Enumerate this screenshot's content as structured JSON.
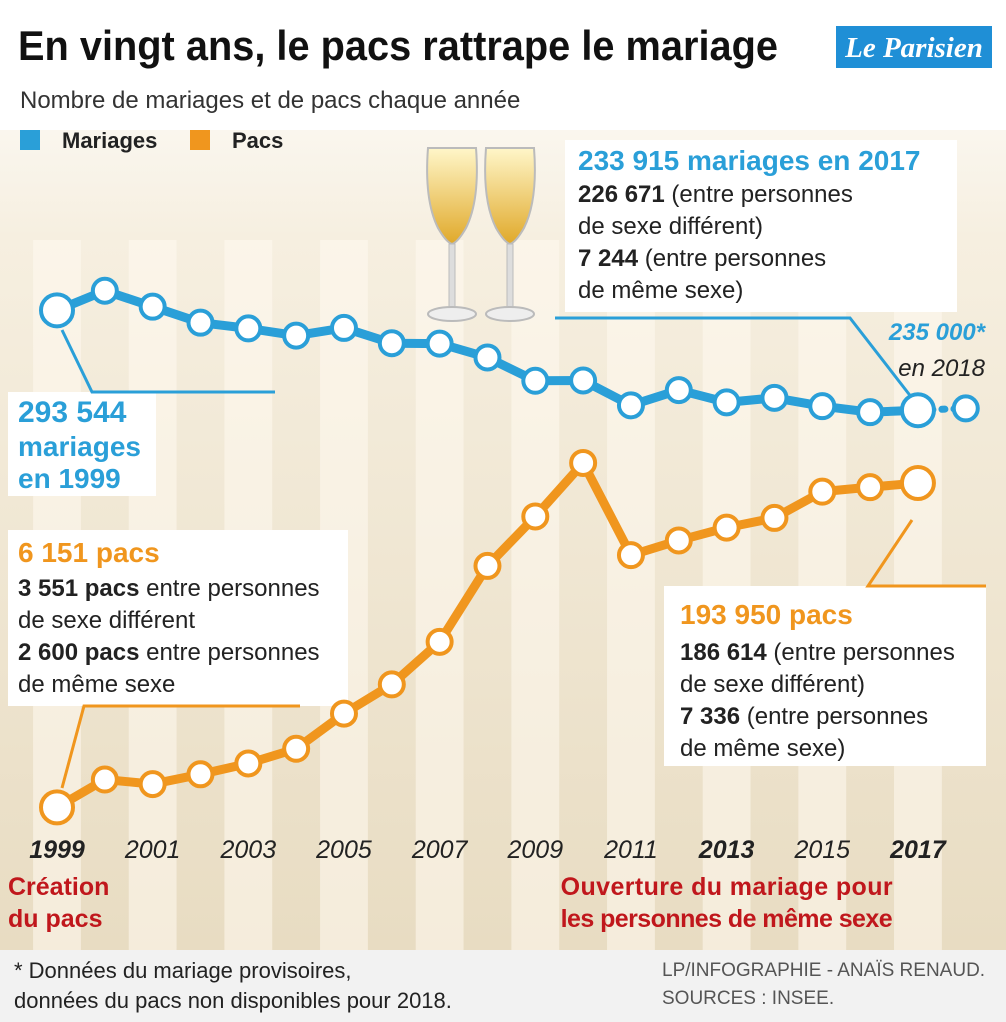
{
  "chart_data": {
    "type": "line",
    "title": "En vingt ans, le pacs rattrape le mariage",
    "subtitle": "Nombre de mariages et de pacs chaque année",
    "brand": "Le Parisien",
    "categories": [
      "1999",
      null,
      "2001",
      null,
      "2003",
      null,
      "2005",
      null,
      "2007",
      null,
      "2009",
      null,
      "2011",
      null,
      "2013",
      null,
      "2015",
      null,
      "2017",
      null
    ],
    "series": [
      {
        "name": "Mariages",
        "color": "#2a9fd8",
        "axis": "y2",
        "values": [
          293544,
          305234,
          295720,
          286169,
          282756,
          278439,
          283036,
          273914,
          273669,
          265404,
          251478,
          251654,
          236826,
          245930,
          238592,
          241292,
          236316,
          232725,
          233915,
          235000
        ],
        "value_labels": [
          "293 544",
          null,
          null,
          null,
          null,
          null,
          null,
          null,
          null,
          null,
          null,
          null,
          null,
          null,
          null,
          null,
          null,
          null,
          "233 915 mariages en 2017",
          "235 000*"
        ]
      },
      {
        "name": "Pacs",
        "color": "#f0961e",
        "axis": "y",
        "values": [
          6151,
          22271,
          19629,
          25305,
          31585,
          40080,
          60462,
          77347,
          101980,
          145938,
          174584,
          205558,
          152176,
          160690,
          168126,
          173728,
          188947,
          191537,
          193950,
          null
        ],
        "value_labels": [
          "6 151 pacs",
          null,
          null,
          null,
          null,
          null,
          null,
          null,
          null,
          null,
          null,
          null,
          null,
          null,
          null,
          null,
          null,
          null,
          "193 950 pacs",
          null
        ]
      }
    ],
    "ylim": [
      0,
      220000
    ],
    "y2lim": [
      200000,
      320000
    ],
    "dotted_after": "2017",
    "emphasized_category": "2017",
    "events": [
      {
        "at": "1999",
        "color": "#c0171c",
        "label": [
          "Création",
          "du pacs"
        ]
      },
      {
        "at": "2013",
        "color": "#c0171c",
        "label": [
          "Ouverture du mariage pour",
          "les personnes de même sexe"
        ]
      }
    ],
    "callouts": [
      {
        "color": "#2a9fd8",
        "emphasis": false,
        "lines": [
          [
            "226 671",
            " (entre personnes"
          ],
          [
            "de sexe différent)"
          ],
          [
            "7 244",
            " (entre personnes"
          ],
          [
            "de même sexe)"
          ]
        ]
      },
      {
        "color": "#2a9fd8",
        "emphasis": true,
        "lines": [
          [
            "mariages"
          ],
          [
            "en 1999"
          ]
        ]
      },
      {
        "color": "#f0961e",
        "emphasis": false,
        "lines": [
          [
            "3 551 pacs",
            " entre personnes"
          ],
          [
            "de sexe différent"
          ],
          [
            "2 600 pacs",
            " entre personnes"
          ],
          [
            "de même sexe"
          ]
        ]
      },
      {
        "color": "#f0961e",
        "emphasis": false,
        "lines": [
          [
            "186 614",
            " (entre personnes"
          ],
          [
            "de sexe différent)"
          ],
          [
            "7 336",
            " (entre personnes"
          ],
          [
            "de même sexe)"
          ]
        ]
      },
      {
        "color": "#222222",
        "emphasis": false,
        "lines": [
          [
            "en 2018"
          ]
        ]
      }
    ],
    "footnote": [
      "* Données du mariage provisoires,",
      "données du pacs non disponibles pour 2018."
    ],
    "credits": [
      "LP/INFOGRAPHIE - ANAÏS RENAUD.",
      "SOURCES : INSEE."
    ]
  }
}
